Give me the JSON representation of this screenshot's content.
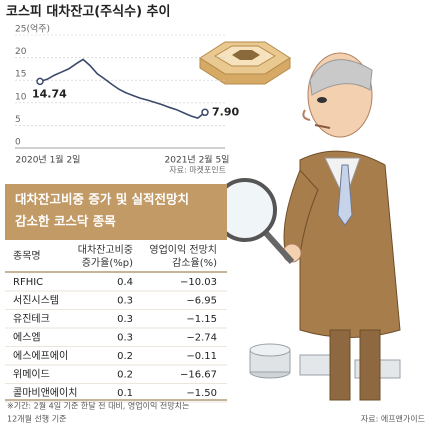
{
  "chart_data": {
    "type": "line",
    "title": "코스피 대차잔고(주식수) 추이",
    "categories": [
      "2020년 1월 2일",
      null,
      null,
      null,
      null,
      null,
      null,
      null,
      null,
      null,
      null,
      null,
      null,
      null,
      null,
      null,
      null,
      null,
      null,
      null,
      null,
      null,
      null,
      "2021년 2월 5일"
    ],
    "series": [
      {
        "color": "#3b4a6b",
        "values": [
          14.74,
          15.2,
          16.1,
          16.8,
          17.5,
          18.6,
          19.6,
          18.2,
          16.4,
          15.3,
          14.1,
          13.0,
          12.2,
          11.6,
          11.0,
          10.6,
          10.1,
          9.6,
          9.0,
          8.5,
          7.8,
          7.1,
          6.6,
          7.9
        ],
        "value_labels": [
          "14.74",
          null,
          null,
          null,
          null,
          null,
          null,
          null,
          null,
          null,
          null,
          null,
          null,
          null,
          null,
          null,
          null,
          null,
          null,
          null,
          null,
          null,
          null,
          "7.90"
        ]
      }
    ],
    "ylim": [
      0,
      25
    ],
    "yticks": [
      0,
      5,
      10,
      15,
      20,
      {
        "value": 25,
        "label": "25(억주)"
      }
    ],
    "grid": true,
    "source": "자료: 마켓포인트"
  },
  "table": {
    "title_lines": [
      "대차잔고비중 증가 및 실적전망치",
      "감소한 코스닥 종목"
    ],
    "header": [
      "종목명",
      [
        "대차잔고비중",
        "증가율(%p)"
      ],
      [
        "영업이익 전망치",
        "감소율(%)"
      ]
    ],
    "rows": [
      [
        "RFHIC",
        "0.4",
        "−10.03"
      ],
      [
        "서진시스템",
        "0.3",
        "−6.95"
      ],
      [
        "유진테크",
        "0.3",
        "−1.15"
      ],
      [
        "에스엠",
        "0.3",
        "−2.74"
      ],
      [
        "에스에프에이",
        "0.2",
        "−0.11"
      ],
      [
        "위메이드",
        "0.2",
        "−16.67"
      ],
      [
        "콜마비앤에이치",
        "0.1",
        "−1.50"
      ]
    ],
    "notes": [
      "※기간: 2월 4일 기준 한달 전 대비, 영업이익 전망치는",
      "12개월 선행 기준"
    ],
    "source": "자료: 에프앤가이드"
  }
}
